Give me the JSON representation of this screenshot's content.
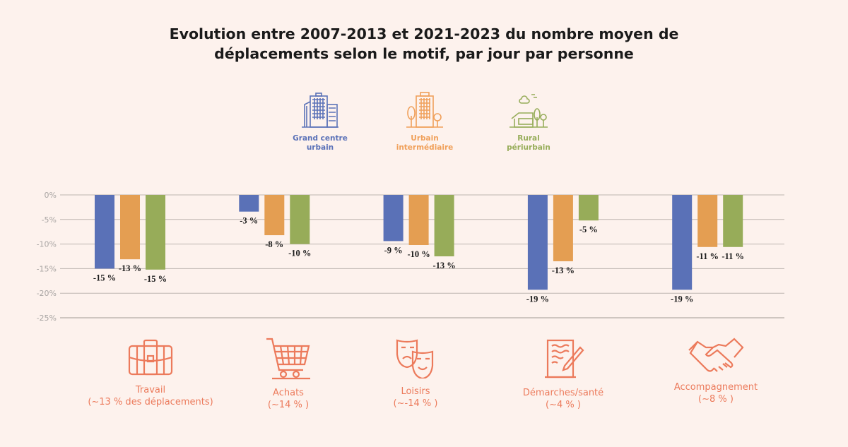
{
  "title_line1": "Evolution entre 2007-2013 et 2021-2023 du nombre moyen de",
  "title_line2": "déplacements selon le motif, par jour par personne",
  "legend": [
    {
      "line1": "Grand centre",
      "line2": "urbain",
      "color": "#5b72b8",
      "icon": "city-buildings-icon"
    },
    {
      "line1": "Urbain",
      "line2": "intermédiaire",
      "color": "#f0a05a",
      "icon": "building-trees-icon"
    },
    {
      "line1": "Rural",
      "line2": "périurbain",
      "color": "#97ad5a",
      "icon": "house-trees-icon"
    }
  ],
  "categories_info": [
    {
      "name": "Travail",
      "share": "(~13 % des déplacements)",
      "icon": "briefcase-icon"
    },
    {
      "name": "Achats",
      "share": "(~14 % )",
      "icon": "shopping-cart-icon"
    },
    {
      "name": "Loisirs",
      "share": "(~-14 % )",
      "icon": "theater-masks-icon"
    },
    {
      "name": "Démarches/santé",
      "share": "(~4 % )",
      "icon": "document-pen-icon"
    },
    {
      "name": "Accompagnement",
      "share": "(~8 % )",
      "icon": "handshake-icon"
    }
  ],
  "chart_data": {
    "type": "bar",
    "title": "Evolution entre 2007-2013 et 2021-2023 du nombre moyen de déplacements selon le motif, par jour par personne",
    "categories": [
      "Travail",
      "Achats",
      "Loisirs",
      "Démarches/santé",
      "Accompagnement"
    ],
    "series": [
      {
        "name": "Grand centre urbain",
        "color": "#5a71b7",
        "values": [
          -15.0,
          -3.4,
          -9.4,
          -19.3,
          -19.3
        ],
        "labels": [
          "-15 %",
          "-3 %",
          "-9 %",
          "-19 %",
          "-19 %"
        ]
      },
      {
        "name": "Urbain intermédiaire",
        "color": "#e49e52",
        "values": [
          -13.1,
          -8.2,
          -10.2,
          -13.5,
          -10.6
        ],
        "labels": [
          "-13 %",
          "-8 %",
          "-10 %",
          "-13 %",
          "-11 %"
        ]
      },
      {
        "name": "Rural périurbain",
        "color": "#97ac59",
        "values": [
          -15.2,
          -10.0,
          -12.5,
          -5.2,
          -10.6
        ],
        "labels": [
          "-15 %",
          "-10 %",
          "-13 %",
          "-5 %",
          "-11 %"
        ]
      }
    ],
    "yticks": [
      "0%",
      "-5%",
      "-10%",
      "-15%",
      "-20%",
      "-25%"
    ],
    "ytick_values": [
      0,
      -5,
      -10,
      -15,
      -20,
      -25
    ],
    "ylim": [
      -25,
      0
    ],
    "grid": true,
    "legend_placement": "top-center"
  }
}
